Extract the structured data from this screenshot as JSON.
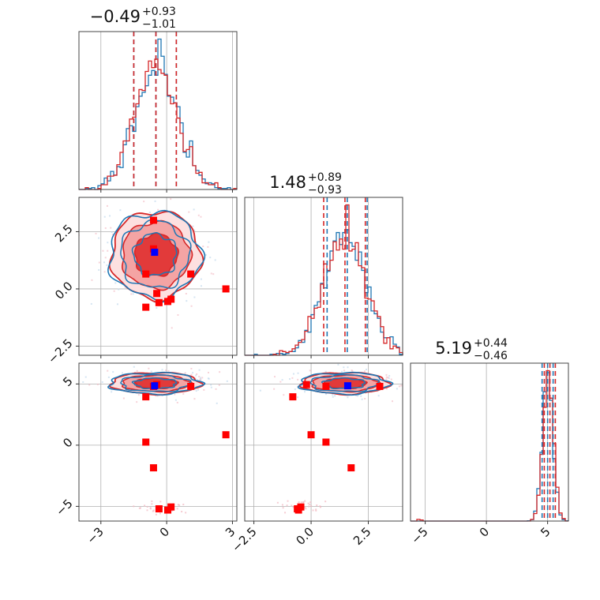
{
  "chart_data": {
    "type": "corner",
    "parameters": [
      {
        "index": 0,
        "median": -0.49,
        "err_plus": 0.93,
        "err_minus": 1.01,
        "title_main": "−0.49",
        "title_plus": "+0.93",
        "title_minus": "−1.01",
        "range": [
          -4.0,
          3.2
        ],
        "ticks": [
          -3,
          0,
          3
        ],
        "tick_labels": [
          "−3",
          "0",
          "3"
        ],
        "quantile_lines": {
          "red": [
            -1.5,
            -0.49,
            0.44
          ],
          "blue": [
            -1.5,
            -0.49,
            0.44
          ]
        },
        "hist_center": -0.49,
        "hist_sigma": 0.97
      },
      {
        "index": 1,
        "median": 1.48,
        "err_plus": 0.89,
        "err_minus": 0.93,
        "title_main": "1.48",
        "title_plus": "+0.89",
        "title_minus": "−0.93",
        "range": [
          -2.9,
          4.0
        ],
        "ticks": [
          -2.5,
          0.0,
          2.5
        ],
        "tick_labels": [
          "−2.5",
          "0.0",
          "2.5"
        ],
        "quantile_lines": {
          "red": [
            0.55,
            1.48,
            2.37
          ],
          "blue": [
            0.7,
            1.58,
            2.45
          ]
        },
        "hist_center": 1.48,
        "hist_sigma": 0.91
      },
      {
        "index": 2,
        "median": 5.19,
        "err_plus": 0.44,
        "err_minus": 0.46,
        "title_main": "5.19",
        "title_plus": "+0.44",
        "title_minus": "−0.46",
        "range": [
          -6.2,
          6.7
        ],
        "ticks": [
          -5,
          0,
          5
        ],
        "tick_labels": [
          "−5",
          "0",
          "5"
        ],
        "quantile_lines": {
          "red": [
            4.73,
            5.19,
            5.63
          ],
          "blue": [
            4.55,
            5.0,
            5.45
          ]
        },
        "hist_center": 5.05,
        "hist_sigma": 0.42
      }
    ],
    "series": [
      {
        "name": "red",
        "color": "#d62728",
        "fill": "#f08080"
      },
      {
        "name": "blue",
        "color": "#1f77b4"
      }
    ],
    "markers": {
      "blue_truth": {
        "p0": -0.55,
        "p1": 1.6,
        "p2": 4.85
      },
      "red_points": [
        {
          "p0": -0.6,
          "p1": 3.0,
          "p2": 4.8
        },
        {
          "p0": -0.6,
          "p1": 1.75,
          "p2": -1.85
        },
        {
          "p0": -0.95,
          "p1": 0.65,
          "p2": 0.25
        },
        {
          "p0": -0.95,
          "p1": -0.8,
          "p2": 3.95
        },
        {
          "p0": -0.45,
          "p1": -0.2,
          "p2": 4.95
        },
        {
          "p0": 0.05,
          "p1": -0.55,
          "p2": -5.3
        },
        {
          "p0": 0.2,
          "p1": -0.45,
          "p2": -5.05
        },
        {
          "p0": 1.1,
          "p1": 0.65,
          "p2": 4.8
        },
        {
          "p0": 2.7,
          "p1": 0.0,
          "p2": 0.85
        },
        {
          "p0": -0.35,
          "p1": -0.6,
          "p2": -5.2
        }
      ]
    },
    "xlabel": "",
    "ylabel": "",
    "title": ""
  }
}
